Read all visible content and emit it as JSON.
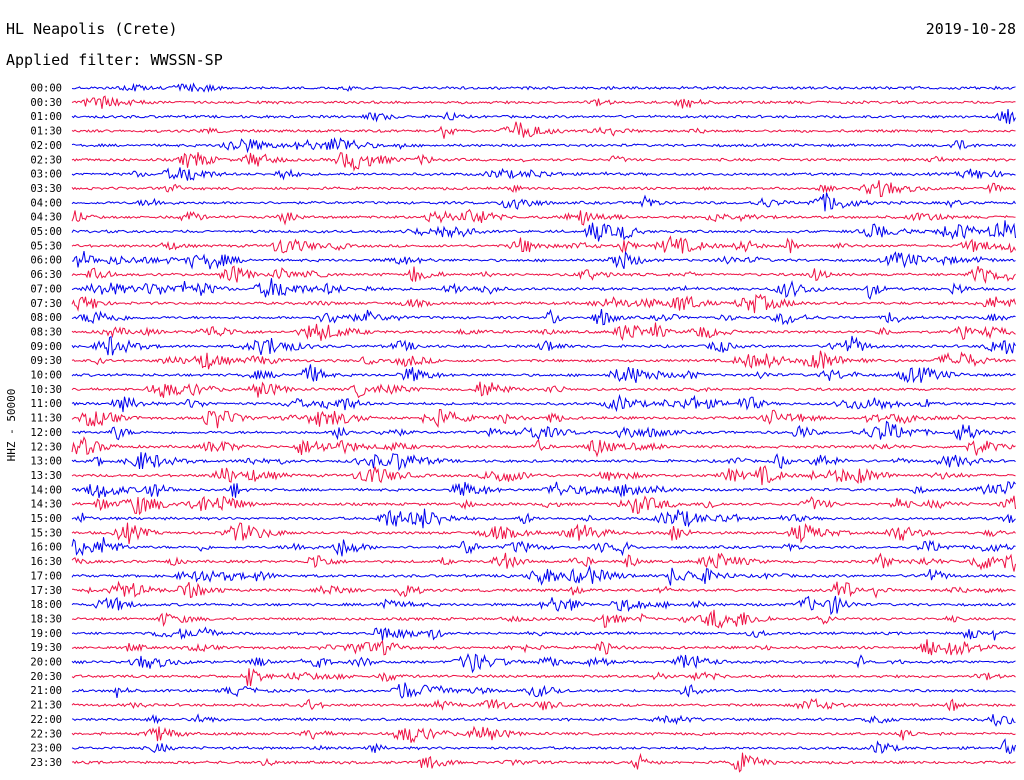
{
  "header": {
    "station": "HL Neapolis (Crete)",
    "date": "2019-10-28",
    "filter": "Applied filter: WWSSN-SP"
  },
  "chart_data": {
    "type": "line",
    "ylabel": "HHZ - 50000",
    "colors": {
      "even_rows": "#0000ee",
      "odd_rows": "#ee1144"
    },
    "grid": false,
    "row_labels": [
      "00:00",
      "00:30",
      "01:00",
      "01:30",
      "02:00",
      "02:30",
      "03:00",
      "03:30",
      "04:00",
      "04:30",
      "05:00",
      "05:30",
      "06:00",
      "06:30",
      "07:00",
      "07:30",
      "08:00",
      "08:30",
      "09:00",
      "09:30",
      "10:00",
      "10:30",
      "11:00",
      "11:30",
      "12:00",
      "12:30",
      "13:00",
      "13:30",
      "14:00",
      "14:30",
      "15:00",
      "15:30",
      "16:00",
      "16:30",
      "17:00",
      "17:30",
      "18:00",
      "18:30",
      "19:00",
      "19:30",
      "20:00",
      "20:30",
      "21:00",
      "21:30",
      "22:00",
      "22:30",
      "23:00",
      "23:30"
    ],
    "activity_level": [
      0.15,
      0.15,
      0.15,
      0.25,
      0.25,
      0.45,
      0.45,
      0.3,
      0.4,
      0.5,
      0.55,
      0.7,
      0.75,
      0.85,
      0.85,
      0.8,
      0.75,
      0.75,
      0.8,
      0.75,
      0.75,
      0.7,
      0.7,
      0.7,
      0.7,
      0.75,
      0.75,
      0.75,
      0.8,
      0.8,
      0.8,
      0.75,
      0.8,
      0.8,
      0.8,
      0.7,
      0.7,
      0.65,
      0.6,
      0.55,
      0.55,
      0.45,
      0.45,
      0.4,
      0.3,
      0.35,
      0.25,
      0.25
    ]
  }
}
